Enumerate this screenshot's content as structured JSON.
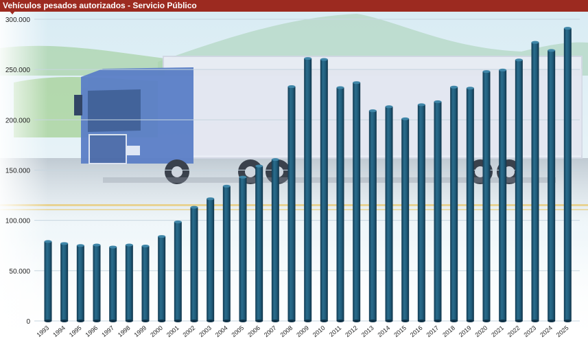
{
  "header": {
    "title": "Vehículos pesados autorizados - Servicio Público"
  },
  "colors": {
    "header_bg": "#9c2a20",
    "bar_top": "#2f6f8f",
    "bar_mid": "#1f5a78",
    "bar_dark": "#123a52",
    "sky": "#e4f1f6"
  },
  "chart_data": {
    "type": "bar",
    "title": "Vehículos pesados autorizados - Servicio Público",
    "xlabel": "",
    "ylabel": "",
    "ylim": [
      0,
      300000
    ],
    "yticks": [
      "0",
      "50.000",
      "100.000",
      "150.000",
      "200.000",
      "250.000",
      "300.000"
    ],
    "grid": true,
    "categories": [
      "1993",
      "1994",
      "1995",
      "1996",
      "1997",
      "1998",
      "1999",
      "2000",
      "2001",
      "2002",
      "2003",
      "2004",
      "2005",
      "2006",
      "2007",
      "2008",
      "2009",
      "2010",
      "2011",
      "2012",
      "2013",
      "2014",
      "2015",
      "2016",
      "2017",
      "2018",
      "2019",
      "2020",
      "2021",
      "2022",
      "2023",
      "2024",
      "2025"
    ],
    "values": [
      79000,
      77000,
      75000,
      75500,
      73500,
      75500,
      74500,
      84000,
      98500,
      113000,
      121500,
      134000,
      143000,
      154000,
      160500,
      233000,
      261000,
      260000,
      232000,
      237000,
      209000,
      213000,
      201000,
      215000,
      218000,
      232500,
      231500,
      248000,
      249500,
      259500,
      277000,
      269000,
      291000
    ]
  }
}
